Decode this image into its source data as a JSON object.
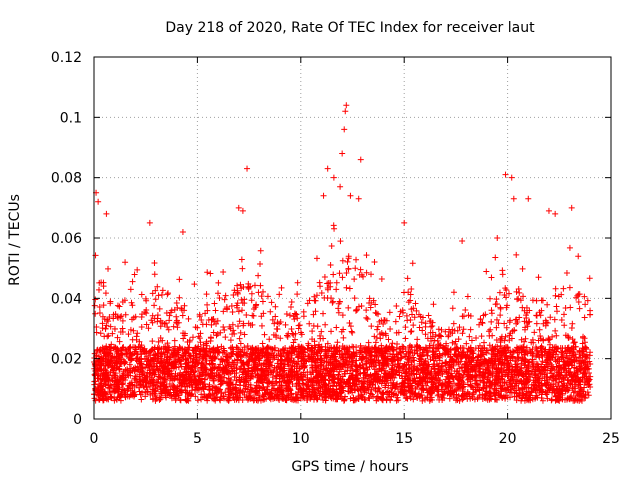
{
  "chart_data": {
    "type": "scatter",
    "title": "Day 218 of 2020, Rate Of TEC Index for receiver laut",
    "xlabel": "GPS time / hours",
    "ylabel": "ROTI / TECUs",
    "xlim": [
      0,
      25
    ],
    "ylim": [
      0,
      0.12
    ],
    "xticks": [
      0,
      5,
      10,
      15,
      20,
      25
    ],
    "xtick_labels": [
      "0",
      "5",
      "10",
      "15",
      "20",
      "25"
    ],
    "yticks": [
      0,
      0.02,
      0.04,
      0.06,
      0.08,
      0.1,
      0.12
    ],
    "ytick_labels": [
      "0",
      "0.02",
      "0.04",
      "0.06",
      "0.08",
      "0.1",
      "0.12"
    ],
    "grid": true,
    "marker": "plus",
    "color": "#ff0000",
    "series": [
      {
        "name": "ROTI",
        "x_range": [
          0,
          24
        ],
        "envelope": {
          "hours": [
            0,
            0.5,
            1,
            2,
            3,
            4,
            5,
            6,
            7,
            8,
            9,
            10,
            11,
            12,
            13,
            14,
            15,
            16,
            17,
            18,
            19,
            20,
            21,
            22,
            23,
            24
          ],
          "typical_max": [
            0.05,
            0.045,
            0.04,
            0.04,
            0.045,
            0.04,
            0.035,
            0.04,
            0.045,
            0.045,
            0.035,
            0.035,
            0.05,
            0.06,
            0.05,
            0.035,
            0.045,
            0.035,
            0.03,
            0.035,
            0.04,
            0.045,
            0.04,
            0.04,
            0.045,
            0.04
          ]
        },
        "notable_points": [
          {
            "x": 0.1,
            "y": 0.075
          },
          {
            "x": 0.2,
            "y": 0.072
          },
          {
            "x": 0.6,
            "y": 0.068
          },
          {
            "x": 2.7,
            "y": 0.065
          },
          {
            "x": 4.3,
            "y": 0.062
          },
          {
            "x": 7.0,
            "y": 0.07
          },
          {
            "x": 7.2,
            "y": 0.069
          },
          {
            "x": 7.4,
            "y": 0.083
          },
          {
            "x": 11.1,
            "y": 0.074
          },
          {
            "x": 11.3,
            "y": 0.083
          },
          {
            "x": 11.6,
            "y": 0.08
          },
          {
            "x": 11.9,
            "y": 0.077
          },
          {
            "x": 12.0,
            "y": 0.088
          },
          {
            "x": 12.1,
            "y": 0.096
          },
          {
            "x": 12.15,
            "y": 0.102
          },
          {
            "x": 12.2,
            "y": 0.104
          },
          {
            "x": 12.4,
            "y": 0.074
          },
          {
            "x": 12.8,
            "y": 0.073
          },
          {
            "x": 12.9,
            "y": 0.086
          },
          {
            "x": 15.0,
            "y": 0.065
          },
          {
            "x": 17.8,
            "y": 0.059
          },
          {
            "x": 19.5,
            "y": 0.06
          },
          {
            "x": 19.9,
            "y": 0.081
          },
          {
            "x": 20.2,
            "y": 0.08
          },
          {
            "x": 20.3,
            "y": 0.073
          },
          {
            "x": 21.0,
            "y": 0.073
          },
          {
            "x": 22.0,
            "y": 0.069
          },
          {
            "x": 22.3,
            "y": 0.068
          },
          {
            "x": 23.1,
            "y": 0.07
          }
        ]
      }
    ]
  }
}
